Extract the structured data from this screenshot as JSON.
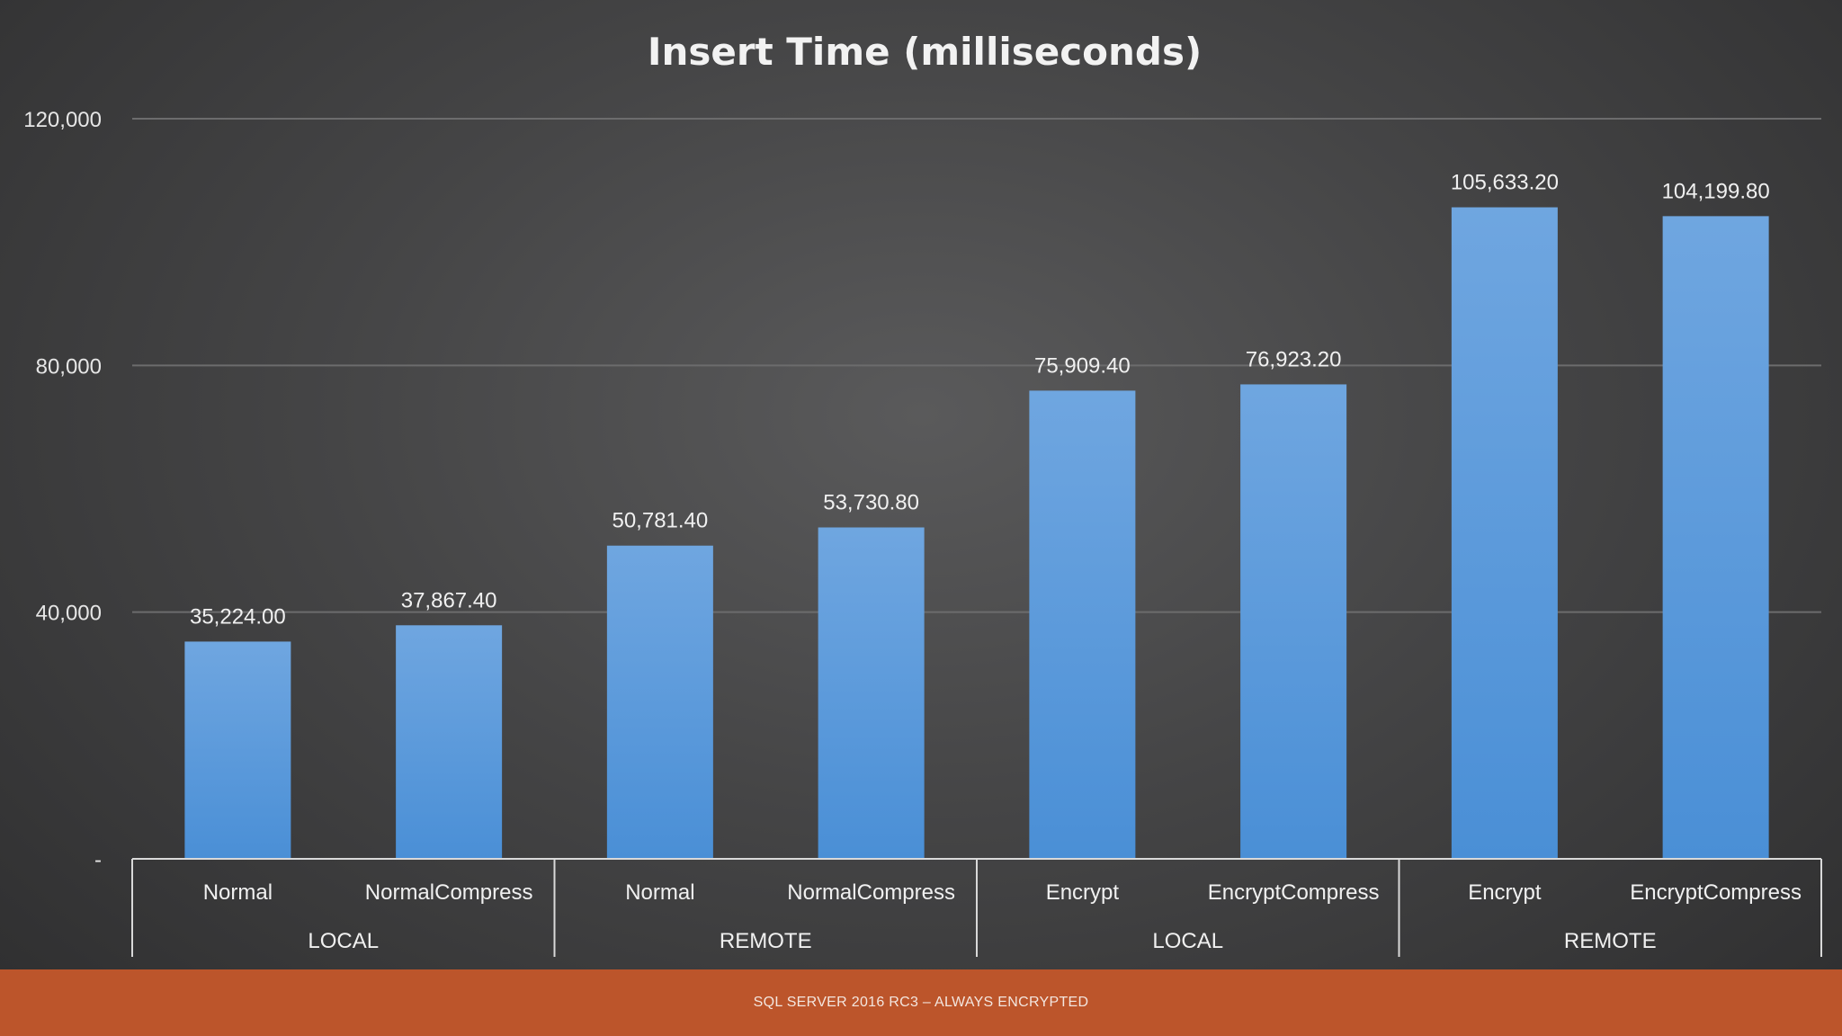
{
  "chart_data": {
    "type": "bar",
    "title": "Insert Time (milliseconds)",
    "xlabel": "",
    "ylabel": "",
    "ylim": [
      0,
      120000
    ],
    "yticks": [
      0,
      40000,
      80000,
      120000
    ],
    "ytick_labels": [
      "-",
      "40,000",
      "80,000",
      "120,000"
    ],
    "grid": true,
    "legend": "none",
    "categories": [
      "Normal",
      "NormalCompress",
      "Normal",
      "NormalCompress",
      "Encrypt",
      "EncryptCompress",
      "Encrypt",
      "EncryptCompress"
    ],
    "values": [
      35224.0,
      37867.4,
      50781.4,
      53730.8,
      75909.4,
      76923.2,
      105633.2,
      104199.8
    ],
    "data_labels": [
      "35,224.00",
      "37,867.40",
      "50,781.40",
      "53,730.80",
      "75,909.40",
      "76,923.20",
      "105,633.20",
      "104,199.80"
    ],
    "groups": [
      {
        "label": "LOCAL",
        "count": 2
      },
      {
        "label": "REMOTE",
        "count": 2
      },
      {
        "label": "LOCAL",
        "count": 2
      },
      {
        "label": "REMOTE",
        "count": 2
      }
    ],
    "bar_color_top": "#6fa6e0",
    "bar_color_bottom": "#4a8fd6"
  },
  "footer": {
    "text": "SQL SERVER 2016 RC3 – ALWAYS ENCRYPTED"
  }
}
